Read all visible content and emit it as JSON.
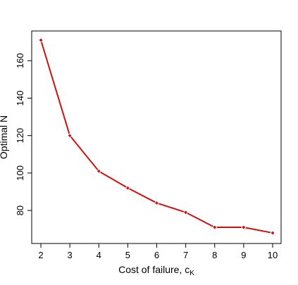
{
  "chart_data": {
    "type": "line",
    "title": "",
    "xlabel": "Cost of failure, c",
    "xlabel_sub": "K",
    "ylabel": "Optimal N",
    "x": [
      2,
      3,
      4,
      5,
      6,
      7,
      8,
      9,
      10
    ],
    "series": [
      {
        "values": [
          171,
          120,
          101,
          92,
          84,
          79,
          71,
          71,
          68
        ],
        "color": "#cc1111"
      }
    ],
    "xlim": [
      2,
      10
    ],
    "ylim": [
      68,
      171
    ],
    "xticks": [
      "2",
      "3",
      "4",
      "5",
      "6",
      "7",
      "8",
      "9",
      "10"
    ],
    "yticks": [
      "80",
      "100",
      "120",
      "140",
      "160"
    ],
    "grid": false,
    "legend": "none"
  }
}
